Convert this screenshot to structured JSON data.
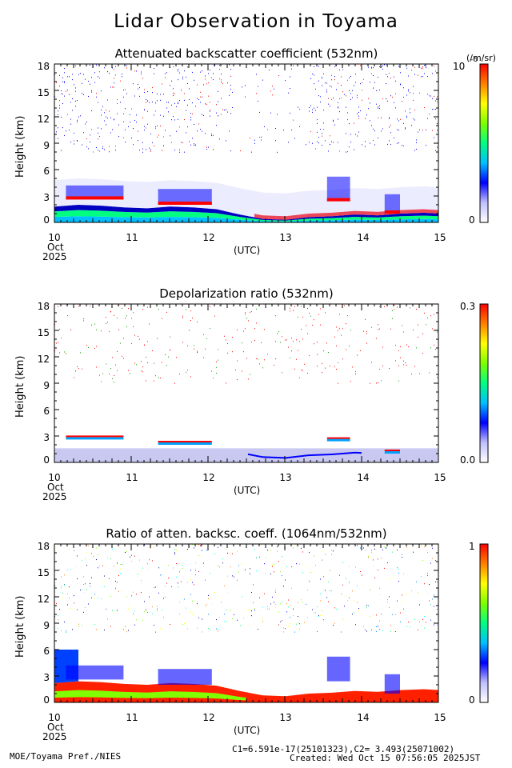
{
  "title": "Lidar Observation in Toyama",
  "x_unit_label": "(UTC)",
  "x_sub_labels": {
    "month": "Oct",
    "year": "2025"
  },
  "footer": {
    "left": "MOE/Toyama Pref./NIES",
    "constants": "C1=6.591e-17(25101323),C2= 3.493(25071002)",
    "created": "Created: Wed Oct 15 07:56:05 2025JST"
  },
  "chart_data": [
    {
      "type": "heatmap",
      "title": "Attenuated backscatter coefficient (532nm)",
      "ylabel": "Height (km)",
      "xlabel": "(UTC)",
      "xlim": [
        10,
        15
      ],
      "ylim": [
        0,
        18
      ],
      "x_ticks": [
        "10",
        "11",
        "12",
        "13",
        "14",
        "15"
      ],
      "y_ticks": [
        "0",
        "3",
        "6",
        "9",
        "12",
        "15",
        "18"
      ],
      "colorbar": {
        "min_label": "0",
        "max_label": "10",
        "max_exp": "-6",
        "unit": "(/m/sr)"
      },
      "features": {
        "boundary_layer_top_km": [
          [
            10.0,
            1.8
          ],
          [
            10.3,
            2.0
          ],
          [
            10.6,
            1.9
          ],
          [
            10.9,
            1.7
          ],
          [
            11.2,
            1.6
          ],
          [
            11.5,
            1.8
          ],
          [
            11.8,
            1.7
          ],
          [
            12.1,
            1.5
          ],
          [
            12.4,
            0.9
          ],
          [
            12.7,
            0.4
          ],
          [
            13.0,
            0.3
          ],
          [
            13.3,
            0.6
          ],
          [
            13.6,
            0.7
          ],
          [
            13.9,
            0.9
          ],
          [
            14.2,
            0.8
          ],
          [
            14.5,
            1.0
          ],
          [
            14.8,
            1.1
          ],
          [
            15.0,
            1.0
          ]
        ],
        "cloud_layers": [
          {
            "x0": 10.15,
            "x1": 10.9,
            "y0": 2.6,
            "y1": 4.2
          },
          {
            "x0": 11.35,
            "x1": 12.05,
            "y0": 2.0,
            "y1": 3.8
          },
          {
            "x0": 13.55,
            "x1": 13.85,
            "y0": 2.4,
            "y1": 5.2
          },
          {
            "x0": 14.3,
            "x1": 14.5,
            "y0": 1.0,
            "y1": 3.2
          }
        ]
      }
    },
    {
      "type": "heatmap",
      "title": "Depolarization ratio (532nm)",
      "ylabel": "Height (km)",
      "xlabel": "(UTC)",
      "xlim": [
        10,
        15
      ],
      "ylim": [
        0,
        18
      ],
      "x_ticks": [
        "10",
        "11",
        "12",
        "13",
        "14",
        "15"
      ],
      "y_ticks": [
        "0",
        "3",
        "6",
        "9",
        "12",
        "15",
        "18"
      ],
      "colorbar": {
        "min_label": "0.0",
        "max_label": "0.3"
      }
    },
    {
      "type": "heatmap",
      "title": "Ratio of atten. backsc. coeff. (1064nm/532nm)",
      "ylabel": "Height (km)",
      "xlabel": "(UTC)",
      "xlim": [
        10,
        15
      ],
      "ylim": [
        0,
        18
      ],
      "x_ticks": [
        "10",
        "11",
        "12",
        "13",
        "14",
        "15"
      ],
      "y_ticks": [
        "0",
        "3",
        "6",
        "9",
        "12",
        "15",
        "18"
      ],
      "colorbar": {
        "min_label": "0",
        "max_label": "1"
      }
    }
  ]
}
